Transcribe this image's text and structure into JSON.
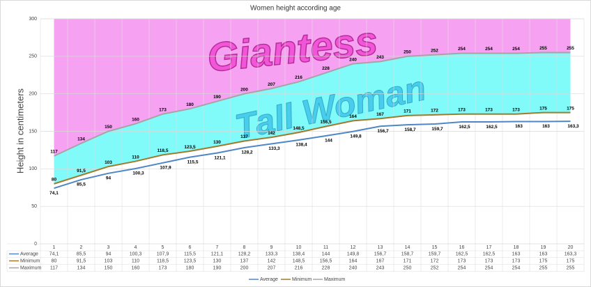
{
  "chart_data": {
    "type": "line",
    "title": "Women height according age",
    "y_label": "Height in centimeters",
    "annotations": [
      "Giantess",
      "Tall Woman"
    ],
    "categories": [
      "1",
      "2",
      "3",
      "4",
      "5",
      "6",
      "7",
      "8",
      "9",
      "10",
      "11",
      "12",
      "13",
      "14",
      "15",
      "16",
      "17",
      "18",
      "19",
      "20"
    ],
    "series": [
      {
        "name": "Average",
        "color": "#4f86c6",
        "values": [
          74.1,
          85.5,
          94,
          100.3,
          107.9,
          115.5,
          121.1,
          128.2,
          133.3,
          138.4,
          144,
          149.8,
          156.7,
          158.7,
          159.7,
          162.5,
          162.5,
          163,
          163,
          163.3
        ],
        "value_labels": [
          "74,1",
          "85,5",
          "94",
          "100,3",
          "107,9",
          "115,5",
          "121,1",
          "128,2",
          "133,3",
          "138,4",
          "144",
          "149,8",
          "156,7",
          "158,7",
          "159,7",
          "162,5",
          "162,5",
          "163",
          "163",
          "163,3"
        ]
      },
      {
        "name": "Minimum",
        "color": "#a07a2c",
        "values": [
          80,
          91.5,
          103,
          110,
          118.5,
          123.5,
          130,
          137,
          142,
          148.5,
          156.5,
          164,
          167,
          171,
          172,
          173,
          173,
          173,
          175,
          175
        ],
        "value_labels": [
          "80",
          "91,5",
          "103",
          "110",
          "118,5",
          "123,5",
          "130",
          "137",
          "142",
          "148,5",
          "156,5",
          "164",
          "167",
          "171",
          "172",
          "173",
          "173",
          "173",
          "175",
          "175"
        ]
      },
      {
        "name": "Maximum",
        "color": "#a5a5a5",
        "values": [
          117,
          134,
          150,
          160,
          173,
          180,
          190,
          200,
          207,
          216,
          228,
          240,
          243,
          250,
          252,
          254,
          254,
          254,
          255,
          255
        ],
        "value_labels": [
          "117",
          "134",
          "150",
          "160",
          "173",
          "180",
          "190",
          "200",
          "207",
          "216",
          "228",
          "240",
          "243",
          "250",
          "252",
          "254",
          "254",
          "254",
          "255",
          "255"
        ]
      }
    ],
    "fill_colors": {
      "above_maximum": "#f7a1f3",
      "between_minimum_maximum": "#80fbf9"
    },
    "ylim": [
      0,
      300
    ],
    "yticks": [
      0,
      50,
      100,
      150,
      200,
      250,
      300
    ],
    "grid": true,
    "legend": "bottom"
  }
}
